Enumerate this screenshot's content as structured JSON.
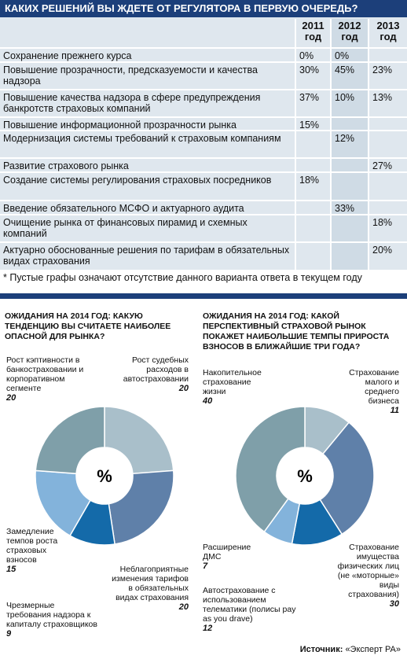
{
  "table": {
    "title": "КАКИХ РЕШЕНИЙ ВЫ ЖДЕТЕ ОТ РЕГУЛЯТОРА В ПЕРВУЮ ОЧЕРЕДЬ?",
    "columns": [
      "2011 год",
      "2012 год",
      "2013 год"
    ],
    "rows": [
      [
        "Сохранение прежнего курса",
        "0%",
        "0%",
        null
      ],
      [
        "Повышение прозрачности, предсказуемости и качества надзора",
        "30%",
        "45%",
        "23%"
      ],
      [
        "Повышение качества надзора в сфере предупреждения банкротств страховых компаний",
        "37%",
        "10%",
        "13%"
      ],
      [
        "Повышение информационной прозрачности рынка",
        "15%",
        null,
        null
      ],
      [
        "Модернизация системы требований к страховым компаниям",
        null,
        "12%",
        null
      ],
      [
        "Развитие страхового рынка",
        null,
        null,
        "27%"
      ],
      [
        "Создание системы регулирования страховых посредников",
        "18%",
        null,
        null
      ],
      [
        "Введение обязательного МСФО и актуарного аудита",
        null,
        "33%",
        null
      ],
      [
        "Очищение рынка от финансовых пирамид и схемных компаний",
        null,
        null,
        "18%"
      ],
      [
        "Актуарно обоснованные решения по тарифам в обязательных видах страхования",
        null,
        null,
        "20%"
      ]
    ],
    "footnote": "* Пустые графы означают отсутствие данного варианта ответа в текущем году"
  },
  "chart_data": [
    {
      "type": "donut",
      "title": "ОЖИДАНИЯ НА 2014 ГОД: КАКУЮ ТЕНДЕНЦИЮ ВЫ СЧИТАЕТЕ НАИБОЛЕЕ ОПАСНОЙ ДЛЯ РЫНКА?",
      "center_label": "%",
      "categories": [
        "Рост судебных расходов в автостраховании",
        "Неблагоприятные изменения тарифов в обязательных видах страхования",
        "Чрезмерные требования надзора к капиталу страховщиков",
        "Замедление темпов роста страховых взносов",
        "Рост кэптивности в банкостраховании и корпоративном сегменте"
      ],
      "values": [
        20,
        20,
        9,
        15,
        20
      ],
      "colors": [
        "#a9bfca",
        "#5f80a9",
        "#146aa9",
        "#83b3db",
        "#7f9fa9"
      ]
    },
    {
      "type": "donut",
      "title": "ОЖИДАНИЯ НА 2014 ГОД: КАКОЙ ПЕРСПЕКТИВНЫЙ СТРАХОВОЙ РЫНОК ПОКАЖЕТ НАИБОЛЬШИЕ ТЕМПЫ ПРИРОСТА ВЗНОСОВ В БЛИЖАЙШИЕ ТРИ ГОДА?",
      "center_label": "%",
      "categories": [
        "Страхование малого и среднего бизнеса",
        "Страхование имущества физических лиц (не «моторные» виды страхования)",
        "Автострахование с использованием телематики (полисы pay as you drave)",
        "Расширение ДМС",
        "Накопительное страхование жизни"
      ],
      "values": [
        11,
        30,
        12,
        7,
        40
      ],
      "colors": [
        "#a9bfca",
        "#5f80a9",
        "#146aa9",
        "#83b3db",
        "#7f9fa9"
      ]
    }
  ],
  "source_label": "Источник:",
  "source": "«Эксперт РА»"
}
